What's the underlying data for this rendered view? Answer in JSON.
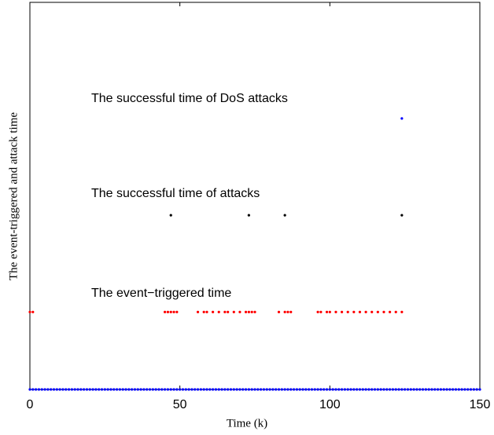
{
  "chart_data": {
    "type": "scatter",
    "xlabel": "Time (k)",
    "ylabel": "The event-triggered and attack time",
    "annotations": [
      "The successful time of DoS attacks",
      "The successful time of attacks",
      "The event−triggered time"
    ],
    "xlim": [
      0,
      150
    ],
    "xticks": [
      0,
      50,
      100,
      150
    ],
    "ylim": [
      0,
      4
    ],
    "series": [
      {
        "color": "#0000ff",
        "x": [
          0,
          1,
          2,
          3,
          4,
          5,
          6,
          7,
          8,
          9,
          10,
          11,
          12,
          13,
          14,
          15,
          16,
          17,
          18,
          19,
          20,
          21,
          22,
          23,
          24,
          25,
          26,
          27,
          28,
          29,
          30,
          31,
          32,
          33,
          34,
          35,
          36,
          37,
          38,
          39,
          40,
          41,
          42,
          43,
          44,
          45,
          46,
          47,
          48,
          49,
          50,
          51,
          52,
          53,
          54,
          55,
          56,
          57,
          58,
          59,
          60,
          61,
          62,
          63,
          64,
          65,
          66,
          67,
          68,
          69,
          70,
          71,
          72,
          73,
          74,
          75,
          76,
          77,
          78,
          79,
          80,
          81,
          82,
          83,
          84,
          85,
          86,
          87,
          88,
          89,
          90,
          91,
          92,
          93,
          94,
          95,
          96,
          97,
          98,
          99,
          100,
          101,
          102,
          103,
          104,
          105,
          106,
          107,
          108,
          109,
          110,
          111,
          112,
          113,
          114,
          115,
          116,
          117,
          118,
          119,
          120,
          121,
          122,
          123,
          124,
          125,
          126,
          127,
          128,
          129,
          130,
          131,
          132,
          133,
          134,
          135,
          136,
          137,
          138,
          139,
          140,
          141,
          142,
          143,
          144,
          145,
          146,
          147,
          148,
          149,
          150
        ],
        "values": [
          0,
          0,
          0,
          0,
          0,
          0,
          0,
          0,
          0,
          0,
          0,
          0,
          0,
          0,
          0,
          0,
          0,
          0,
          0,
          0,
          0,
          0,
          0,
          0,
          0,
          0,
          0,
          0,
          0,
          0,
          0,
          0,
          0,
          0,
          0,
          0,
          0,
          0,
          0,
          0,
          0,
          0,
          0,
          0,
          0,
          0,
          0,
          0,
          0,
          0,
          0,
          0,
          0,
          0,
          0,
          0,
          0,
          0,
          0,
          0,
          0,
          0,
          0,
          0,
          0,
          0,
          0,
          0,
          0,
          0,
          0,
          0,
          0,
          0,
          0,
          0,
          0,
          0,
          0,
          0,
          0,
          0,
          0,
          0,
          0,
          0,
          0,
          0,
          0,
          0,
          0,
          0,
          0,
          0,
          0,
          0,
          0,
          0,
          0,
          0,
          0,
          0,
          0,
          0,
          0,
          0,
          0,
          0,
          0,
          0,
          0,
          0,
          0,
          0,
          0,
          0,
          0,
          0,
          0,
          0,
          0,
          0,
          0,
          0,
          0,
          0,
          0,
          0,
          0,
          0,
          0,
          0,
          0,
          0,
          0,
          0,
          0,
          0,
          0,
          0,
          0,
          0,
          0,
          0,
          0,
          0,
          0,
          0,
          0,
          0,
          0
        ]
      },
      {
        "color": "#ff0000",
        "x": [
          0,
          1,
          45,
          46,
          47,
          48,
          49,
          56,
          58,
          59,
          61,
          63,
          65,
          66,
          68,
          70,
          72,
          73,
          74,
          75,
          83,
          85,
          86,
          87,
          96,
          97,
          99,
          100,
          102,
          104,
          106,
          108,
          110,
          112,
          114,
          116,
          118,
          120,
          122,
          124
        ],
        "values": [
          0.8,
          0.8,
          0.8,
          0.8,
          0.8,
          0.8,
          0.8,
          0.8,
          0.8,
          0.8,
          0.8,
          0.8,
          0.8,
          0.8,
          0.8,
          0.8,
          0.8,
          0.8,
          0.8,
          0.8,
          0.8,
          0.8,
          0.8,
          0.8,
          0.8,
          0.8,
          0.8,
          0.8,
          0.8,
          0.8,
          0.8,
          0.8,
          0.8,
          0.8,
          0.8,
          0.8,
          0.8,
          0.8,
          0.8,
          0.8
        ]
      },
      {
        "color": "#000000",
        "x": [
          47,
          73,
          85,
          124
        ],
        "values": [
          1.8,
          1.8,
          1.8,
          1.8
        ]
      },
      {
        "color": "#0000ff",
        "x": [
          124
        ],
        "values": [
          2.8
        ]
      }
    ]
  }
}
